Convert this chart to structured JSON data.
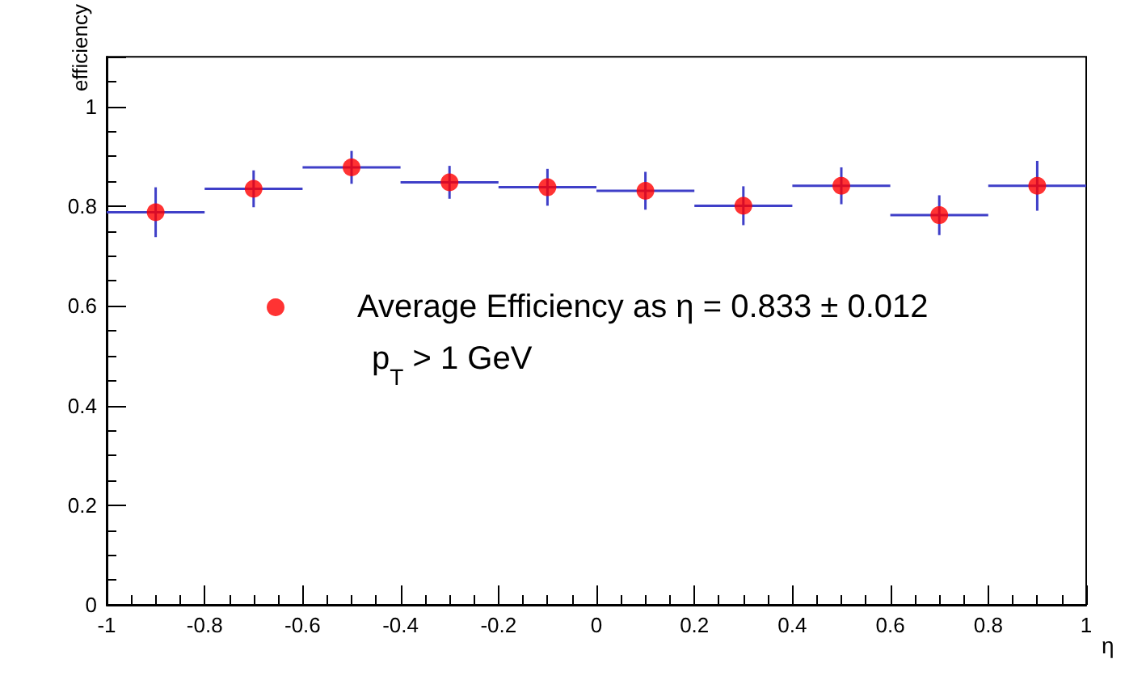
{
  "chart_data": {
    "type": "scatter",
    "xlabel": "η",
    "ylabel": "efficiency",
    "x": [
      -0.9,
      -0.7,
      -0.5,
      -0.3,
      -0.1,
      0.1,
      0.3,
      0.5,
      0.7,
      0.9
    ],
    "series": [
      {
        "name": "Average Efficiency as η = 0.833 ± 0.012",
        "color": "#ff0000",
        "values": [
          0.788,
          0.835,
          0.878,
          0.848,
          0.838,
          0.831,
          0.801,
          0.841,
          0.782,
          0.841
        ],
        "errors": [
          0.05,
          0.037,
          0.033,
          0.033,
          0.037,
          0.038,
          0.039,
          0.037,
          0.04,
          0.05
        ],
        "xerrors": [
          0.1,
          0.1,
          0.1,
          0.1,
          0.1,
          0.1,
          0.1,
          0.1,
          0.1,
          0.1
        ]
      }
    ],
    "annotations": [
      "p$_{T}$ > 1 GeV"
    ],
    "xlim": [
      -1,
      1
    ],
    "xticks": [
      -1,
      -0.8,
      -0.6,
      -0.4,
      -0.2,
      0,
      0.2,
      0.4,
      0.6,
      0.8,
      1
    ],
    "ylim": [
      0,
      1.1
    ],
    "yticks": [
      0,
      0.2,
      0.4,
      0.6,
      0.8,
      1
    ],
    "marker": "circle",
    "grid": false,
    "legend": "center"
  }
}
